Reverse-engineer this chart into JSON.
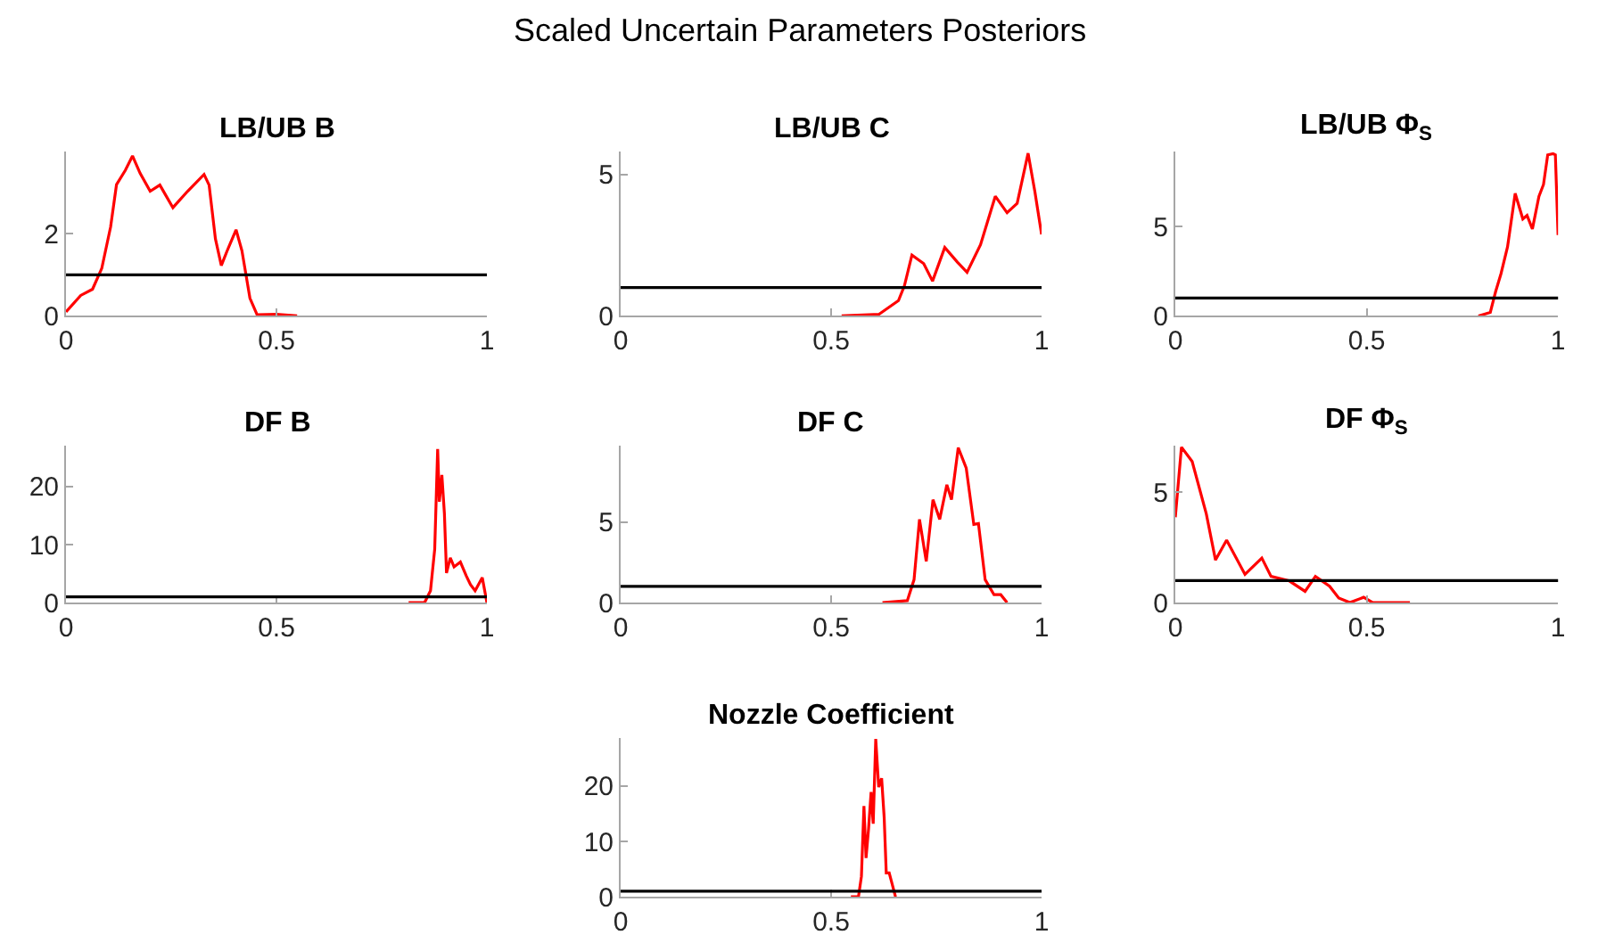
{
  "chart_data": [
    {
      "type": "line",
      "title": "LB/UB B",
      "annotations": [
        "Scaled Uncertain Parameters Posteriors"
      ],
      "xlim": [
        0,
        1
      ],
      "xticks": [
        0,
        0.5,
        1
      ],
      "ylim": [
        0,
        4
      ],
      "yticks": [
        0,
        2
      ],
      "ref_lines": [
        {
          "axis": "y",
          "value": 1,
          "color": "#000000"
        }
      ],
      "series": [
        {
          "color": "#ff0000",
          "x": [
            0,
            0.035,
            0.063,
            0.085,
            0.106,
            0.12,
            0.141,
            0.158,
            0.176,
            0.2,
            0.223,
            0.254,
            0.289,
            0.328,
            0.34,
            0.355,
            0.369,
            0.383,
            0.404,
            0.418,
            0.437,
            0.454,
            0.5,
            0.549
          ],
          "values": [
            0.1,
            0.5,
            0.65,
            1.16,
            2.17,
            3.2,
            3.55,
            3.9,
            3.48,
            3.04,
            3.19,
            2.64,
            3.04,
            3.45,
            3.19,
            1.88,
            1.23,
            1.59,
            2.1,
            1.59,
            0.43,
            0.03,
            0.04,
            0
          ]
        }
      ]
    },
    {
      "type": "line",
      "title": "LB/UB C",
      "xlim": [
        0,
        1
      ],
      "xticks": [
        0,
        0.5,
        1
      ],
      "ylim": [
        0,
        5.8
      ],
      "yticks": [
        0,
        5
      ],
      "ref_lines": [
        {
          "axis": "y",
          "value": 1,
          "color": "#000000"
        }
      ],
      "series": [
        {
          "color": "#ff0000",
          "x": [
            0.525,
            0.614,
            0.66,
            0.674,
            0.692,
            0.72,
            0.741,
            0.77,
            0.8,
            0.823,
            0.855,
            0.89,
            0.918,
            0.942,
            0.968,
            0.984,
            1.0
          ],
          "values": [
            0,
            0.06,
            0.54,
            1.06,
            2.15,
            1.85,
            1.23,
            2.42,
            1.9,
            1.54,
            2.52,
            4.23,
            3.65,
            3.98,
            5.75,
            4.4,
            2.88
          ]
        }
      ]
    },
    {
      "type": "line",
      "title": "LB/UB Φ$_{S}$",
      "xlim": [
        0,
        1
      ],
      "xticks": [
        0,
        0.5,
        1
      ],
      "ylim": [
        0,
        9.2
      ],
      "yticks": [
        0,
        5
      ],
      "ref_lines": [
        {
          "axis": "y",
          "value": 1,
          "color": "#000000"
        }
      ],
      "series": [
        {
          "color": "#ff0000",
          "x": [
            0.792,
            0.823,
            0.837,
            0.851,
            0.868,
            0.888,
            0.908,
            0.919,
            0.933,
            0.95,
            0.962,
            0.973,
            0.987,
            0.993,
            1.0
          ],
          "values": [
            0,
            0.2,
            1.37,
            2.37,
            3.87,
            6.87,
            5.43,
            5.63,
            4.87,
            6.7,
            7.37,
            9.03,
            9.1,
            9.03,
            4.53
          ]
        }
      ]
    },
    {
      "type": "line",
      "title": "DF B",
      "xlim": [
        0,
        1
      ],
      "xticks": [
        0,
        0.5,
        1
      ],
      "ylim": [
        0,
        27
      ],
      "yticks": [
        0,
        10,
        20
      ],
      "ref_lines": [
        {
          "axis": "y",
          "value": 1,
          "color": "#000000"
        }
      ],
      "series": [
        {
          "color": "#ff0000",
          "x": [
            0.814,
            0.852,
            0.866,
            0.876,
            0.883,
            0.887,
            0.893,
            0.899,
            0.904,
            0.913,
            0.922,
            0.937,
            0.951,
            0.961,
            0.972,
            0.989,
            1.0
          ],
          "values": [
            0,
            0,
            2.05,
            9.2,
            26.5,
            17.4,
            22,
            15.4,
            5.1,
            7.7,
            6.15,
            7,
            4.6,
            3.1,
            2.05,
            4.3,
            0
          ]
        }
      ]
    },
    {
      "type": "line",
      "title": "DF C",
      "xlim": [
        0,
        1
      ],
      "xticks": [
        0,
        0.5,
        1
      ],
      "ylim": [
        0,
        9.7
      ],
      "yticks": [
        0,
        5
      ],
      "ref_lines": [
        {
          "axis": "y",
          "value": 1,
          "color": "#000000"
        }
      ],
      "series": [
        {
          "color": "#ff0000",
          "x": [
            0.622,
            0.681,
            0.697,
            0.71,
            0.726,
            0.742,
            0.758,
            0.775,
            0.786,
            0.802,
            0.821,
            0.839,
            0.85,
            0.866,
            0.887,
            0.903,
            0.918
          ],
          "values": [
            0,
            0.12,
            1.42,
            5.16,
            2.56,
            6.38,
            5.16,
            7.3,
            6.38,
            9.6,
            8.33,
            4.84,
            4.9,
            1.42,
            0.49,
            0.49,
            0
          ]
        }
      ]
    },
    {
      "type": "line",
      "title": "DF Φ$_{S}$",
      "xlim": [
        0,
        1
      ],
      "xticks": [
        0,
        0.5,
        1
      ],
      "ylim": [
        0,
        7.1
      ],
      "yticks": [
        0,
        5
      ],
      "ref_lines": [
        {
          "axis": "y",
          "value": 1,
          "color": "#000000"
        }
      ],
      "series": [
        {
          "color": "#ff0000",
          "x": [
            0,
            0.016,
            0.044,
            0.081,
            0.105,
            0.134,
            0.182,
            0.226,
            0.25,
            0.298,
            0.339,
            0.366,
            0.403,
            0.427,
            0.456,
            0.492,
            0.516,
            0.613
          ],
          "values": [
            3.87,
            7.05,
            6.4,
            4.02,
            1.93,
            2.83,
            1.28,
            2.02,
            1.19,
            0.98,
            0.51,
            1.19,
            0.74,
            0.21,
            0,
            0.24,
            0,
            0
          ]
        }
      ]
    },
    {
      "type": "line",
      "title": "Nozzle Coefficient",
      "xlim": [
        0,
        1
      ],
      "xticks": [
        0,
        0.5,
        1
      ],
      "ylim": [
        0,
        28.6
      ],
      "yticks": [
        0,
        10,
        20
      ],
      "ref_lines": [
        {
          "axis": "y",
          "value": 1,
          "color": "#000000"
        }
      ],
      "series": [
        {
          "color": "#ff0000",
          "x": [
            0.547,
            0.565,
            0.572,
            0.578,
            0.583,
            0.589,
            0.595,
            0.6,
            0.606,
            0.613,
            0.62,
            0.626,
            0.631,
            0.638,
            0.653
          ],
          "values": [
            0,
            0,
            3.7,
            16.4,
            7,
            12.3,
            18.9,
            13.2,
            28.5,
            19.8,
            21.4,
            14.4,
            4.3,
            4.3,
            0
          ]
        }
      ]
    }
  ]
}
